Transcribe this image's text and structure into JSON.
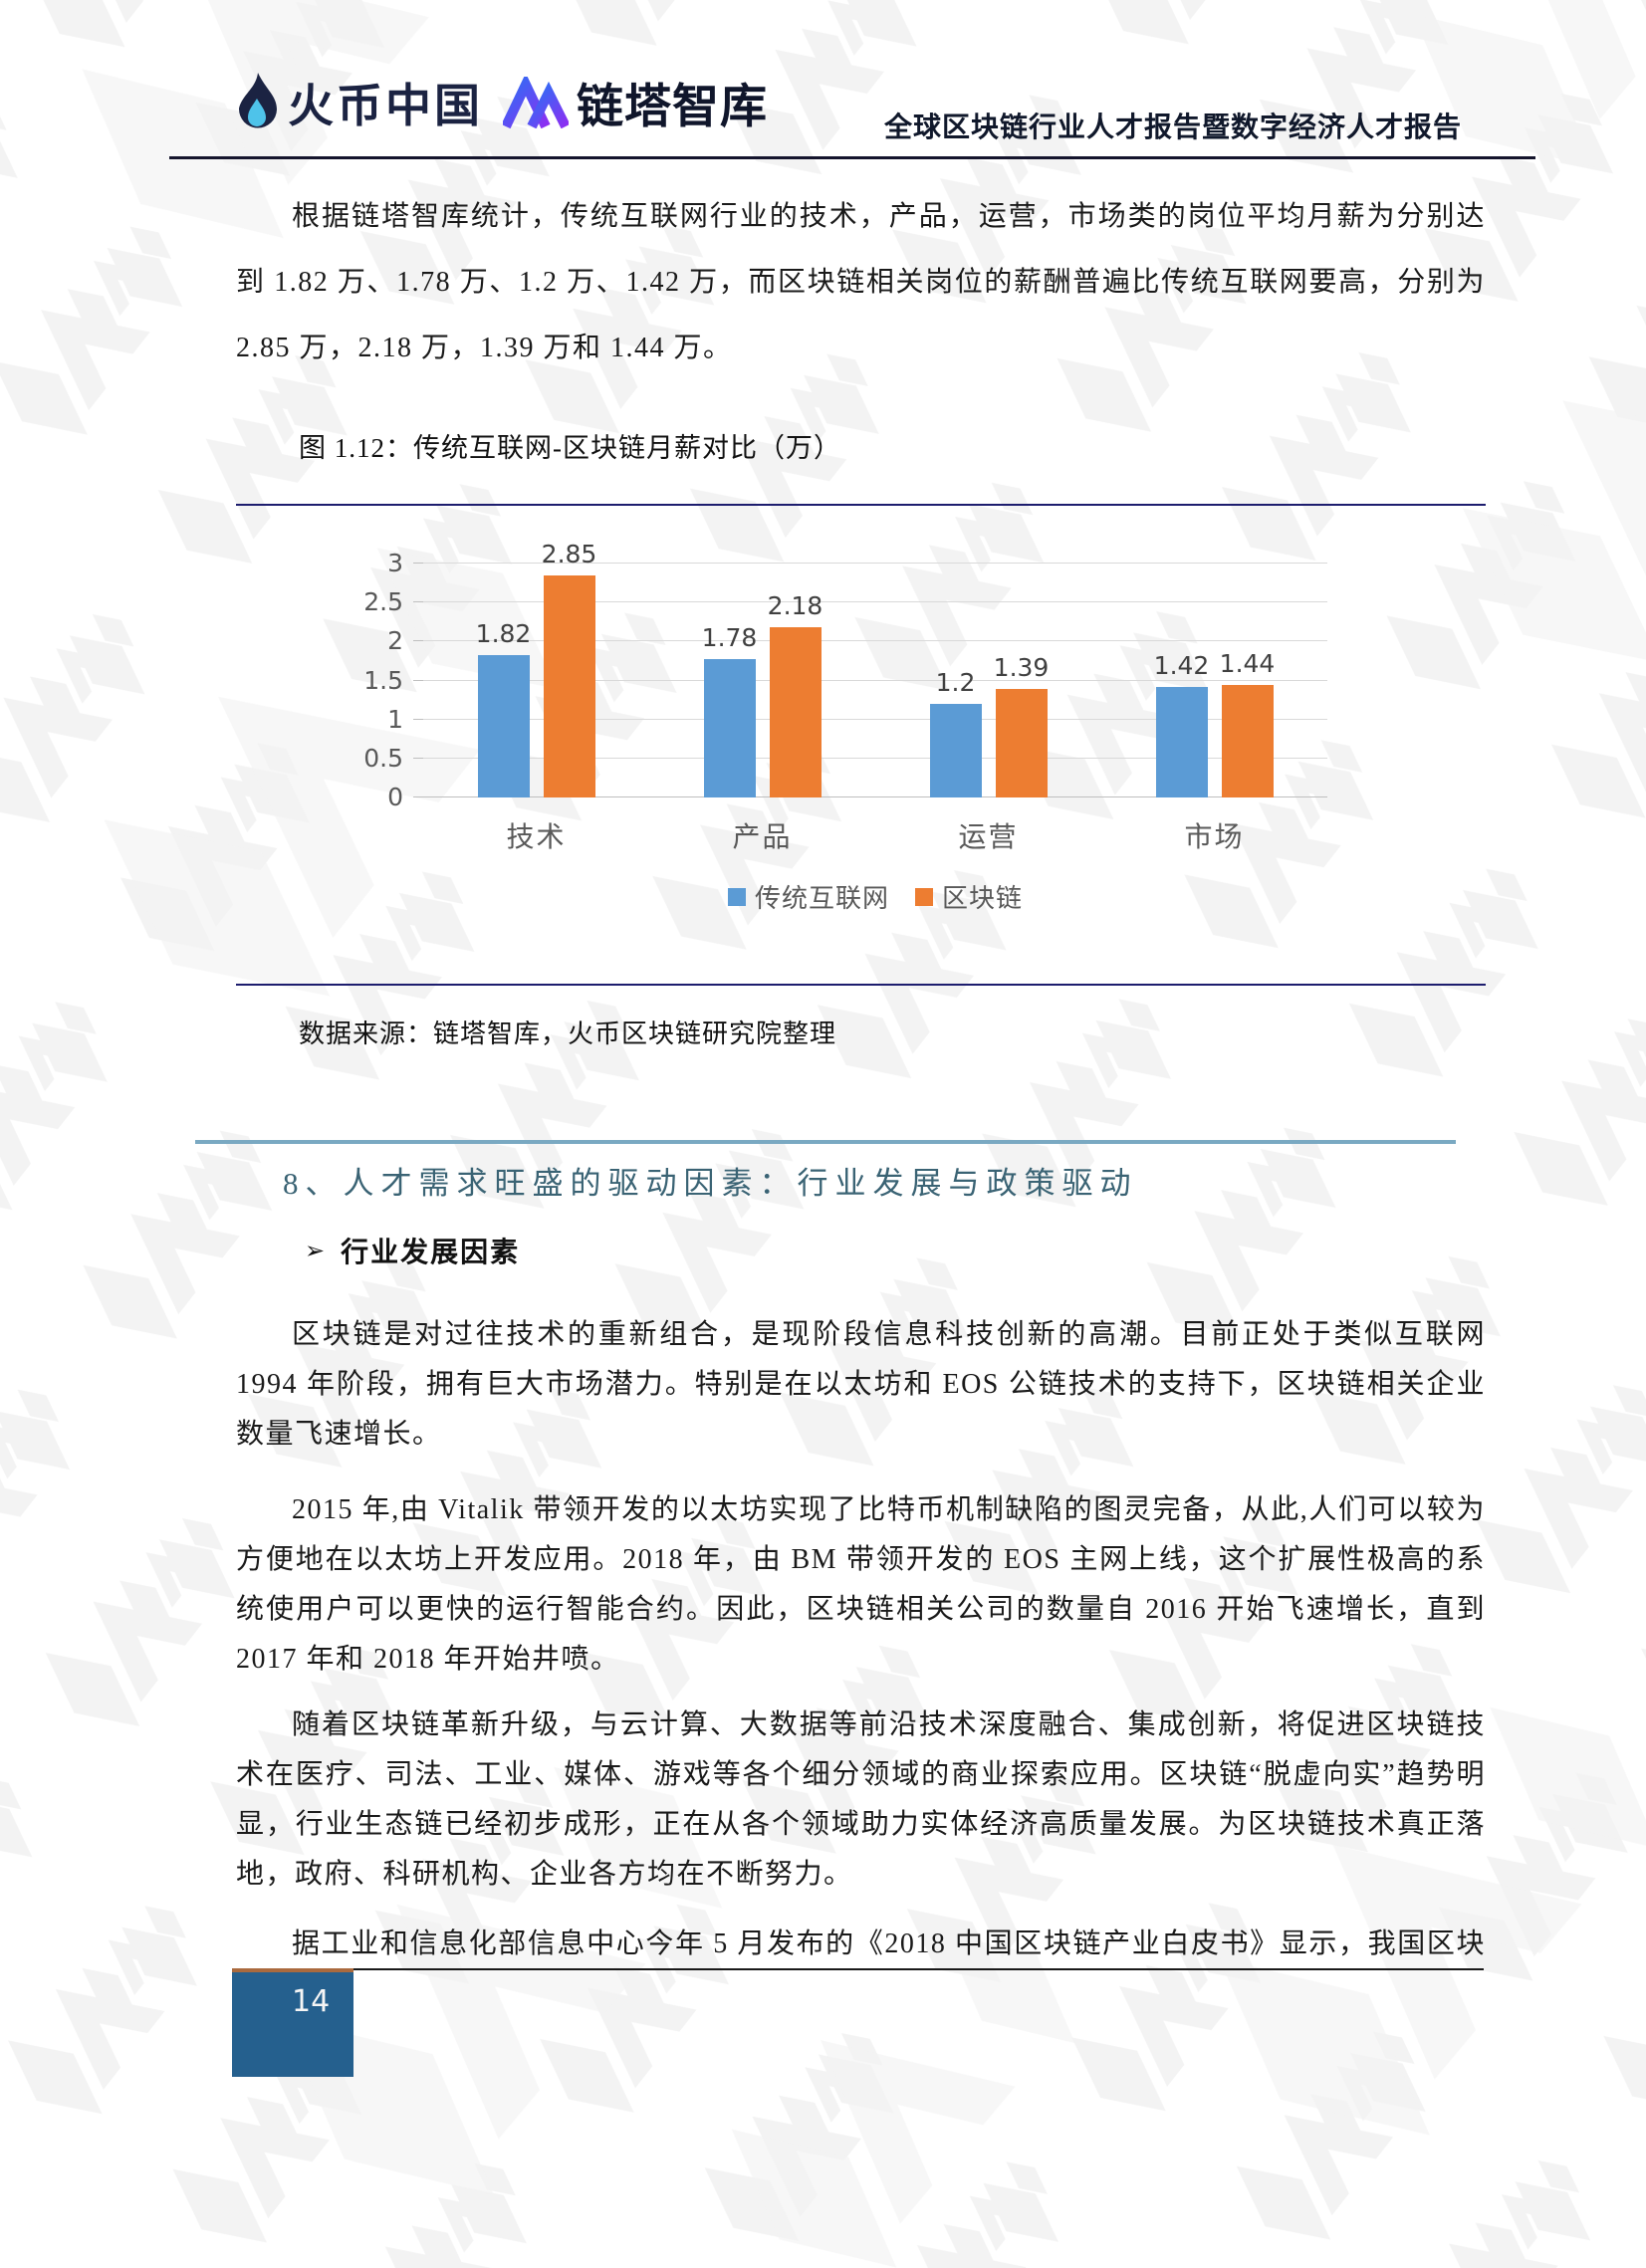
{
  "header": {
    "logo_huobi_text": "火币中国",
    "logo_lianta_text": "链塔智库",
    "report_title": "全球区块链行业人才报告暨数字经济人才报告"
  },
  "paragraphs": {
    "p1": "根据链塔智库统计，传统互联网行业的技术，产品，运营，市场类的岗位平均月薪为分别达到 1.82 万、1.78 万、1.2 万、1.42 万，而区块链相关岗位的薪酬普遍比传统互联网要高，分别为 2.85 万，2.18 万，1.39 万和 1.44 万。",
    "p2": "区块链是对过往技术的重新组合，是现阶段信息科技创新的高潮。目前正处于类似互联网 1994 年阶段，拥有巨大市场潜力。特别是在以太坊和 EOS 公链技术的支持下，区块链相关企业数量飞速增长。",
    "p3": "2015 年,由 Vitalik 带领开发的以太坊实现了比特币机制缺陷的图灵完备，从此,人们可以较为方便地在以太坊上开发应用。2018 年，由 BM 带领开发的 EOS 主网上线，这个扩展性极高的系统使用户可以更快的运行智能合约。因此，区块链相关公司的数量自 2016 开始飞速增长，直到 2017 年和 2018 年开始井喷。",
    "p4": "随着区块链革新升级，与云计算、大数据等前沿技术深度融合、集成创新，将促进区块链技术在医疗、司法、工业、媒体、游戏等各个细分领域的商业探索应用。区块链“脱虚向实”趋势明显，行业生态链已经初步成形，正在从各个领域助力实体经济高质量发展。为区块链技术真正落地，政府、科研机构、企业各方均在不断努力。",
    "p5": "据工业和信息化部信息中心今年 5 月发布的《2018 中国区块链产业白皮书》显示，我国区块链"
  },
  "figure": {
    "caption": "图 1.12：传统互联网-区块链月薪对比（万）",
    "source": "数据来源：链塔智库，火币区块链研究院整理"
  },
  "chart_data": {
    "type": "bar",
    "title": "传统互联网-区块链月薪对比（万）",
    "categories": [
      "技术",
      "产品",
      "运营",
      "市场"
    ],
    "series": [
      {
        "name": "传统互联网",
        "color": "#5B9BD5",
        "values": [
          1.82,
          1.78,
          1.2,
          1.42
        ]
      },
      {
        "name": "区块链",
        "color": "#ED7D31",
        "values": [
          2.85,
          2.18,
          1.39,
          1.44
        ]
      }
    ],
    "ylim": [
      0,
      3
    ],
    "ytick_step": 0.5,
    "grid": true,
    "legend_position": "bottom"
  },
  "section": {
    "heading": "8、人才需求旺盛的驱动因素：行业发展与政策驱动",
    "bullet_marker": "➢",
    "bullet": "行业发展因素"
  },
  "footer": {
    "page_number": "14"
  }
}
